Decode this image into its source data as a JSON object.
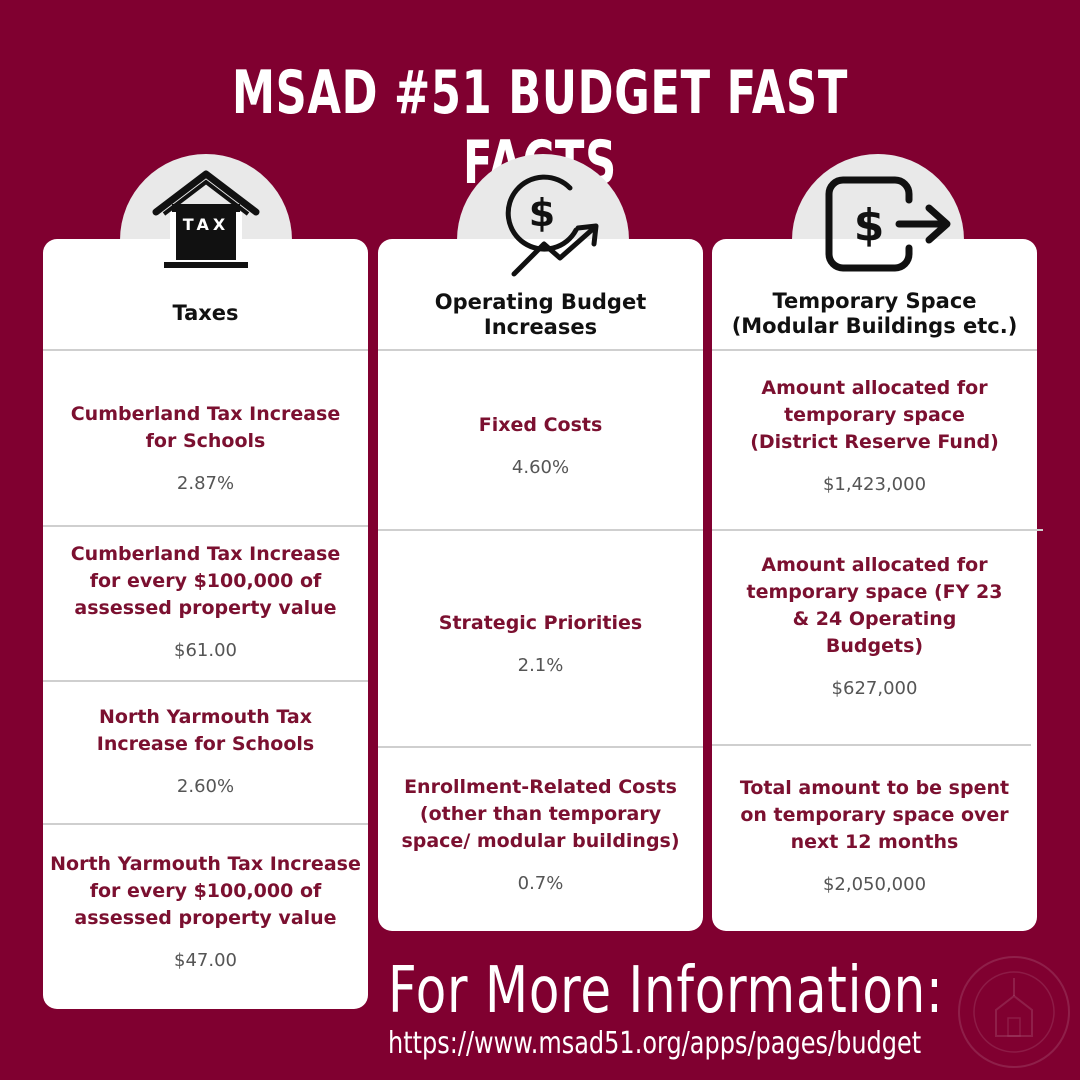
{
  "title": "MSAD #51 BUDGET FAST FACTS",
  "columns": [
    {
      "icon": "tax-house-icon",
      "icon_text": "TAX",
      "heading": "Taxes",
      "items": [
        {
          "label": "Cumberland Tax  Increase for Schools",
          "value": "2.87%"
        },
        {
          "label": "Cumberland Tax Increase for every $100,000 of assessed property value",
          "value": "$61.00"
        },
        {
          "label": "North Yarmouth Tax Increase for Schools",
          "value": "2.60%"
        },
        {
          "label": "North Yarmouth Tax Increase for every $100,000 of assessed property value",
          "value": "$47.00"
        }
      ]
    },
    {
      "icon": "dollar-growth-icon",
      "heading": "Operating Budget Increases",
      "items": [
        {
          "label": "Fixed Costs",
          "value": "4.60%"
        },
        {
          "label": "Strategic Priorities",
          "value": "2.1%"
        },
        {
          "label": "Enrollment-Related Costs (other than temporary space/ modular buildings)",
          "value": "0.7%"
        }
      ]
    },
    {
      "icon": "dollar-transfer-icon",
      "heading": "Temporary Space (Modular Buildings etc.)",
      "items": [
        {
          "label": "Amount allocated for temporary space (District Reserve Fund)",
          "value": "$1,423,000"
        },
        {
          "label": "Amount allocated for temporary space (FY 23 & 24 Operating Budgets)",
          "value": "$627,000"
        },
        {
          "label": "Total amount to be spent on temporary space over next 12 months",
          "value": "$2,050,000"
        }
      ]
    }
  ],
  "footer": {
    "heading": "For More Information:",
    "url": "https://www.msad51.org/apps/pages/budget"
  },
  "colors": {
    "background": "#800030",
    "accent_text": "#7b1030"
  }
}
